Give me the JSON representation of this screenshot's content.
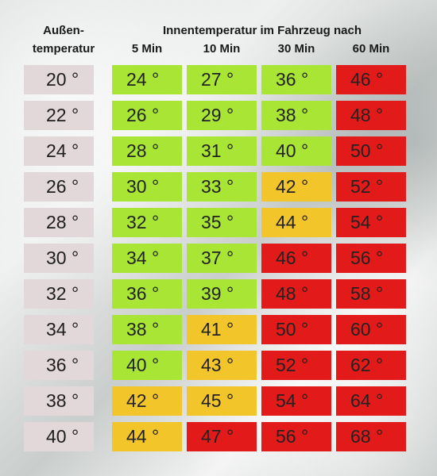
{
  "header": {
    "outside_line1": "Außen-",
    "outside_line2": "temperatur",
    "inside": "Innentemperatur im Fahrzeug nach",
    "columns": [
      "5 Min",
      "10 Min",
      "30 Min",
      "60 Min"
    ]
  },
  "colors": {
    "outside": "#e2d7d9",
    "green": "#a9e535",
    "yellow": "#f2c52a",
    "red": "#e21a1a"
  },
  "chart_data": {
    "type": "table",
    "title": "Innentemperatur im Fahrzeug nach",
    "columns": [
      "Außentemperatur",
      "5 Min",
      "10 Min",
      "30 Min",
      "60 Min"
    ],
    "unit": "°",
    "rows": [
      {
        "outside": "20 °",
        "values": [
          "24 °",
          "27 °",
          "36 °",
          "46 °"
        ],
        "levels": [
          "green",
          "green",
          "green",
          "red"
        ]
      },
      {
        "outside": "22 °",
        "values": [
          "26 °",
          "29 °",
          "38 °",
          "48 °"
        ],
        "levels": [
          "green",
          "green",
          "green",
          "red"
        ]
      },
      {
        "outside": "24 °",
        "values": [
          "28 °",
          "31 °",
          "40 °",
          "50 °"
        ],
        "levels": [
          "green",
          "green",
          "green",
          "red"
        ]
      },
      {
        "outside": "26 °",
        "values": [
          "30 °",
          "33 °",
          "42 °",
          "52 °"
        ],
        "levels": [
          "green",
          "green",
          "yellow",
          "red"
        ]
      },
      {
        "outside": "28 °",
        "values": [
          "32 °",
          "35 °",
          "44 °",
          "54 °"
        ],
        "levels": [
          "green",
          "green",
          "yellow",
          "red"
        ]
      },
      {
        "outside": "30 °",
        "values": [
          "34 °",
          "37 °",
          "46 °",
          "56 °"
        ],
        "levels": [
          "green",
          "green",
          "red",
          "red"
        ]
      },
      {
        "outside": "32 °",
        "values": [
          "36 °",
          "39 °",
          "48 °",
          "58 °"
        ],
        "levels": [
          "green",
          "green",
          "red",
          "red"
        ]
      },
      {
        "outside": "34 °",
        "values": [
          "38 °",
          "41 °",
          "50 °",
          "60 °"
        ],
        "levels": [
          "green",
          "yellow",
          "red",
          "red"
        ]
      },
      {
        "outside": "36 °",
        "values": [
          "40 °",
          "43 °",
          "52 °",
          "62 °"
        ],
        "levels": [
          "green",
          "yellow",
          "red",
          "red"
        ]
      },
      {
        "outside": "38 °",
        "values": [
          "42 °",
          "45 °",
          "54 °",
          "64 °"
        ],
        "levels": [
          "yellow",
          "yellow",
          "red",
          "red"
        ]
      },
      {
        "outside": "40 °",
        "values": [
          "44 °",
          "47 °",
          "56 °",
          "68 °"
        ],
        "levels": [
          "yellow",
          "red",
          "red",
          "red"
        ]
      }
    ]
  }
}
